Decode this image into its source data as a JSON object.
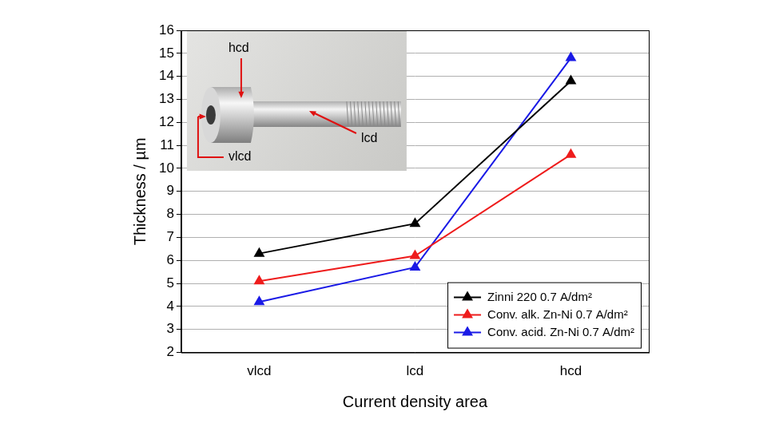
{
  "chart_data": {
    "type": "line",
    "x_label": "Current density area",
    "y_label": "Thickness / µm",
    "categories": [
      "vlcd",
      "lcd",
      "hcd"
    ],
    "series": [
      {
        "name": "Zinni 220 0.7 A/dm²",
        "color": "#000000",
        "values": [
          6.3,
          7.6,
          13.8
        ]
      },
      {
        "name": "Conv. alk. Zn-Ni 0.7 A/dm²",
        "color": "#ee1c1c",
        "values": [
          5.1,
          6.2,
          10.6
        ]
      },
      {
        "name": "Conv. acid. Zn-Ni 0.7 A/dm²",
        "color": "#1a1ae6",
        "values": [
          4.2,
          5.7,
          14.8
        ]
      }
    ],
    "ylim": [
      2,
      16
    ],
    "yticks": [
      2,
      3,
      4,
      5,
      6,
      7,
      8,
      9,
      10,
      11,
      12,
      13,
      14,
      15,
      16
    ],
    "grid": true,
    "legend": "lower right",
    "marker": "triangle",
    "line_style": "solid",
    "annotations": [
      "hcd",
      "lcd",
      "vlcd"
    ]
  }
}
